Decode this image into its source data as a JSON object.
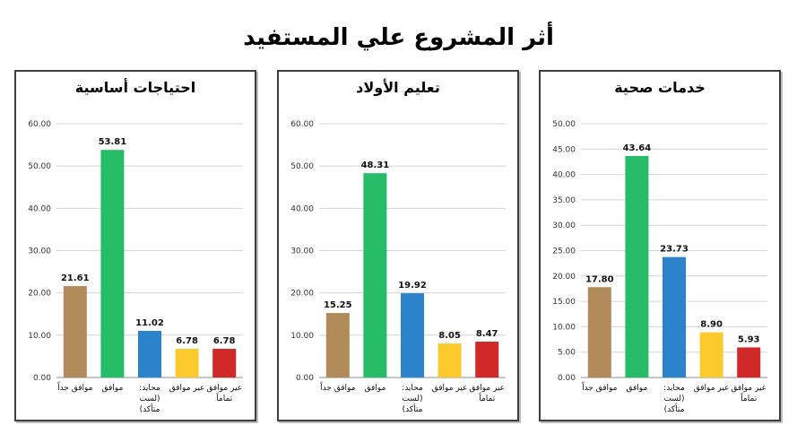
{
  "title": "أثر المشروع علي المستفيد",
  "chart_data": [
    {
      "type": "bar",
      "title": "احتياجات أساسية",
      "categories": [
        "موافق جداً",
        "موافق",
        "محايد: (لست متأكد)",
        "عير موافق",
        "عير موافق تماماً"
      ],
      "category_lines": [
        [
          "موافق جداً"
        ],
        [
          "موافق"
        ],
        [
          "محايد:",
          "(لست",
          "متأكد)"
        ],
        [
          "عير موافق"
        ],
        [
          "عير موافق",
          "تماماً"
        ]
      ],
      "values": [
        21.61,
        53.81,
        11.02,
        6.78,
        6.78
      ],
      "value_labels": [
        "21.61",
        "53.81",
        "11.02",
        "6.78",
        "6.78"
      ],
      "colors": [
        "#b08a59",
        "#27bd68",
        "#2b83cc",
        "#fcca2c",
        "#d12828"
      ],
      "ylim": [
        0,
        60
      ],
      "yticks": [
        "0.00",
        "10.00",
        "20.00",
        "30.00",
        "40.00",
        "50.00",
        "60.00"
      ],
      "grid": true,
      "xlabel": "",
      "ylabel": ""
    },
    {
      "type": "bar",
      "title": "تعليم الأولاد",
      "categories": [
        "موافق جداً",
        "موافق",
        "محايد: (لست متأكد)",
        "عير موافق",
        "عير موافق تماماً"
      ],
      "category_lines": [
        [
          "موافق جداً"
        ],
        [
          "موافق"
        ],
        [
          "محايد:",
          "(لست",
          "متأكد)"
        ],
        [
          "عير موافق"
        ],
        [
          "عير موافق",
          "تماماً"
        ]
      ],
      "values": [
        15.25,
        48.31,
        19.92,
        8.05,
        8.47
      ],
      "value_labels": [
        "15.25",
        "48.31",
        "19.92",
        "8.05",
        "8.47"
      ],
      "colors": [
        "#b08a59",
        "#27bd68",
        "#2b83cc",
        "#fcca2c",
        "#d12828"
      ],
      "ylim": [
        0,
        60
      ],
      "yticks": [
        "0.00",
        "10.00",
        "20.00",
        "30.00",
        "40.00",
        "50.00",
        "60.00"
      ],
      "grid": true,
      "xlabel": "",
      "ylabel": ""
    },
    {
      "type": "bar",
      "title": "خدمات صحية",
      "categories": [
        "موافق جداً",
        "موافق",
        "محايد: (لست متأكد)",
        "عير موافق",
        "عير موافق تماماً"
      ],
      "category_lines": [
        [
          "موافق جداً"
        ],
        [
          "موافق"
        ],
        [
          "محايد:",
          "(لست",
          "متأكد)"
        ],
        [
          "عير موافق"
        ],
        [
          "عير موافق",
          "تماماً"
        ]
      ],
      "values": [
        17.8,
        43.64,
        23.73,
        8.9,
        5.93
      ],
      "value_labels": [
        "17.80",
        "43.64",
        "23.73",
        "8.90",
        "5.93"
      ],
      "colors": [
        "#b08a59",
        "#27bd68",
        "#2b83cc",
        "#fcca2c",
        "#d12828"
      ],
      "ylim": [
        0,
        50
      ],
      "yticks": [
        "0.00",
        "5.00",
        "10.00",
        "15.00",
        "20.00",
        "25.00",
        "30.00",
        "35.00",
        "40.00",
        "45.00",
        "50.00"
      ],
      "grid": true,
      "xlabel": "",
      "ylabel": ""
    }
  ]
}
